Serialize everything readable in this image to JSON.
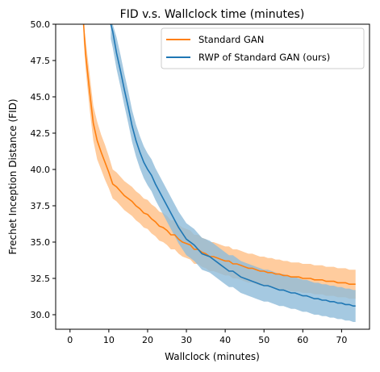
{
  "chart_data": {
    "type": "line",
    "title": "FID v.s. Wallclock time (minutes)",
    "xlabel": "Wallclock (minutes)",
    "ylabel": "Frechet Inception Distance (FID)",
    "xlim": [
      -3.7,
      77.2
    ],
    "ylim": [
      29.0,
      50.0
    ],
    "xticks": [
      0,
      10,
      20,
      30,
      40,
      50,
      60,
      70
    ],
    "yticks": [
      30.0,
      32.5,
      35.0,
      37.5,
      40.0,
      42.5,
      45.0,
      47.5,
      50.0
    ],
    "xtick_labels": [
      "0",
      "10",
      "20",
      "30",
      "40",
      "50",
      "60",
      "70"
    ],
    "ytick_labels": [
      "30.0",
      "32.5",
      "35.0",
      "37.5",
      "40.0",
      "42.5",
      "45.0",
      "47.5",
      "50.0"
    ],
    "grid": false,
    "legend_position": "top-right",
    "series": [
      {
        "name": "Standard GAN",
        "color": "#ff7f0e",
        "band_color": "#ffbf86",
        "x": [
          3.5,
          4,
          5,
          6,
          7,
          8,
          9,
          10,
          11,
          12,
          13,
          14,
          15,
          16,
          17,
          18,
          19,
          20,
          21,
          22,
          23,
          24,
          25,
          26,
          27,
          28,
          29,
          30,
          31,
          32,
          33,
          34,
          35,
          36,
          37,
          38,
          39,
          40,
          41,
          42,
          43,
          44,
          45,
          46,
          47,
          48,
          49,
          50,
          51,
          52,
          53,
          54,
          55,
          56,
          57,
          58,
          59,
          60,
          61,
          62,
          63,
          64,
          65,
          66,
          67,
          68,
          69,
          70,
          71,
          72,
          73,
          73.6
        ],
        "y": [
          50.0,
          48.0,
          45.5,
          43.2,
          42.0,
          41.2,
          40.5,
          39.8,
          39.0,
          38.8,
          38.5,
          38.2,
          38.0,
          37.8,
          37.5,
          37.3,
          37.0,
          36.9,
          36.6,
          36.4,
          36.1,
          36.0,
          35.8,
          35.5,
          35.5,
          35.2,
          35.0,
          34.9,
          34.8,
          34.5,
          34.5,
          34.3,
          34.2,
          34.0,
          34.0,
          33.9,
          33.8,
          33.7,
          33.7,
          33.5,
          33.5,
          33.4,
          33.3,
          33.2,
          33.2,
          33.1,
          33.0,
          33.0,
          32.9,
          32.9,
          32.8,
          32.8,
          32.7,
          32.7,
          32.6,
          32.6,
          32.6,
          32.5,
          32.5,
          32.5,
          32.4,
          32.4,
          32.4,
          32.3,
          32.3,
          32.3,
          32.2,
          32.2,
          32.2,
          32.1,
          32.1,
          32.1
        ],
        "lower": [
          49.0,
          47.0,
          44.3,
          42.0,
          40.7,
          40.0,
          39.3,
          38.7,
          38.0,
          37.8,
          37.5,
          37.2,
          37.0,
          36.8,
          36.5,
          36.3,
          36.0,
          35.9,
          35.6,
          35.4,
          35.1,
          35.0,
          34.8,
          34.5,
          34.5,
          34.2,
          34.0,
          33.9,
          33.8,
          33.5,
          33.5,
          33.3,
          33.2,
          33.0,
          33.0,
          32.9,
          32.8,
          32.7,
          32.7,
          32.5,
          32.5,
          32.4,
          32.3,
          32.2,
          32.2,
          32.1,
          32.0,
          32.0,
          31.9,
          31.9,
          31.8,
          31.8,
          31.7,
          31.7,
          31.6,
          31.6,
          31.6,
          31.5,
          31.5,
          31.5,
          31.4,
          31.4,
          31.4,
          31.3,
          31.3,
          31.3,
          31.2,
          31.2,
          31.2,
          31.1,
          31.1,
          31.1
        ],
        "upper": [
          50.0,
          49.0,
          46.7,
          44.4,
          43.3,
          42.4,
          41.7,
          40.9,
          40.0,
          39.8,
          39.5,
          39.2,
          39.0,
          38.8,
          38.5,
          38.3,
          38.0,
          37.9,
          37.6,
          37.4,
          37.1,
          37.0,
          36.8,
          36.5,
          36.5,
          36.2,
          36.0,
          35.9,
          35.8,
          35.5,
          35.5,
          35.3,
          35.2,
          35.0,
          35.0,
          34.9,
          34.8,
          34.7,
          34.7,
          34.5,
          34.5,
          34.4,
          34.3,
          34.2,
          34.2,
          34.1,
          34.0,
          34.0,
          33.9,
          33.9,
          33.8,
          33.8,
          33.7,
          33.7,
          33.6,
          33.6,
          33.6,
          33.5,
          33.5,
          33.5,
          33.4,
          33.4,
          33.4,
          33.3,
          33.3,
          33.3,
          33.2,
          33.2,
          33.2,
          33.1,
          33.1,
          33.1
        ]
      },
      {
        "name": "RWP of Standard GAN (ours)",
        "color": "#1f77b4",
        "band_color": "#8fbbd9",
        "x": [
          10.5,
          11,
          12,
          13,
          14,
          15,
          16,
          17,
          18,
          19,
          20,
          21,
          22,
          23,
          24,
          25,
          26,
          27,
          28,
          29,
          30,
          31,
          32,
          33,
          34,
          35,
          36,
          37,
          38,
          39,
          40,
          41,
          42,
          43,
          44,
          45,
          46,
          47,
          48,
          49,
          50,
          51,
          52,
          53,
          54,
          55,
          56,
          57,
          58,
          59,
          60,
          61,
          62,
          63,
          64,
          65,
          66,
          67,
          68,
          69,
          70,
          71,
          72,
          73,
          73.6
        ],
        "y": [
          50.0,
          49.5,
          48.0,
          46.8,
          45.5,
          44.3,
          43.0,
          42.0,
          41.2,
          40.5,
          40.0,
          39.6,
          39.0,
          38.5,
          38.0,
          37.5,
          37.0,
          36.5,
          36.0,
          35.6,
          35.2,
          35.0,
          34.8,
          34.5,
          34.2,
          34.1,
          34.0,
          33.8,
          33.6,
          33.4,
          33.2,
          33.0,
          33.0,
          32.8,
          32.6,
          32.5,
          32.4,
          32.3,
          32.2,
          32.1,
          32.0,
          32.0,
          31.9,
          31.8,
          31.7,
          31.7,
          31.6,
          31.5,
          31.5,
          31.4,
          31.3,
          31.3,
          31.2,
          31.1,
          31.1,
          31.0,
          31.0,
          30.9,
          30.9,
          30.8,
          30.8,
          30.7,
          30.7,
          30.6,
          30.6
        ],
        "lower": [
          49.0,
          48.4,
          46.9,
          45.7,
          44.4,
          43.2,
          41.9,
          40.9,
          40.1,
          39.4,
          38.9,
          38.5,
          37.9,
          37.4,
          36.9,
          36.4,
          35.9,
          35.4,
          34.9,
          34.5,
          34.1,
          33.9,
          33.7,
          33.4,
          33.1,
          33.0,
          32.9,
          32.7,
          32.5,
          32.3,
          32.1,
          31.9,
          31.9,
          31.7,
          31.5,
          31.4,
          31.3,
          31.2,
          31.1,
          31.0,
          30.9,
          30.9,
          30.8,
          30.7,
          30.6,
          30.6,
          30.5,
          30.4,
          30.4,
          30.3,
          30.2,
          30.2,
          30.1,
          30.0,
          30.0,
          29.9,
          29.9,
          29.8,
          29.8,
          29.7,
          29.7,
          29.6,
          29.6,
          29.5,
          29.5
        ],
        "upper": [
          50.0,
          50.0,
          49.1,
          47.9,
          46.6,
          45.4,
          44.1,
          43.1,
          42.3,
          41.6,
          41.1,
          40.7,
          40.1,
          39.6,
          39.1,
          38.6,
          38.1,
          37.6,
          37.1,
          36.7,
          36.3,
          36.1,
          35.9,
          35.6,
          35.3,
          35.2,
          35.1,
          34.9,
          34.7,
          34.5,
          34.3,
          34.1,
          34.1,
          33.9,
          33.7,
          33.6,
          33.5,
          33.4,
          33.3,
          33.2,
          33.1,
          33.1,
          33.0,
          32.9,
          32.8,
          32.8,
          32.7,
          32.6,
          32.6,
          32.5,
          32.4,
          32.4,
          32.3,
          32.2,
          32.2,
          32.1,
          32.1,
          32.0,
          32.0,
          31.9,
          31.9,
          31.8,
          31.8,
          31.7,
          31.7
        ]
      }
    ]
  }
}
